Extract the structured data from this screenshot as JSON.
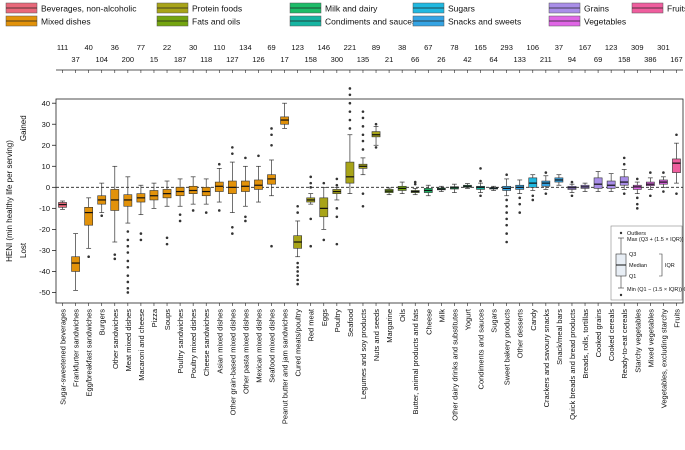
{
  "chart_data": {
    "type": "boxplot",
    "ylabel": "HENI (min healthy life per serving)",
    "y_direction_labels": {
      "up": "Gained",
      "down": "Lost"
    },
    "ylim": [
      -55,
      42
    ],
    "yticks": [
      40,
      30,
      20,
      10,
      0,
      -10,
      -20,
      -30,
      -40,
      -50
    ],
    "reference_line": 0,
    "legend": [
      {
        "name": "Beverages, non-alcoholic",
        "color": "#e8687a"
      },
      {
        "name": "Protein foods",
        "color": "#a8a418"
      },
      {
        "name": "Milk and dairy",
        "color": "#1dbc68"
      },
      {
        "name": "Sugars",
        "color": "#20b8e0"
      },
      {
        "name": "Grains",
        "color": "#a98ee8"
      },
      {
        "name": "Fruits",
        "color": "#ef5e9e"
      },
      {
        "name": "Mixed dishes",
        "color": "#e2920a"
      },
      {
        "name": "Fats and oils",
        "color": "#74a510"
      },
      {
        "name": "Condiments and sauces",
        "color": "#16b5a2"
      },
      {
        "name": "Snacks and sweets",
        "color": "#35a4e4"
      },
      {
        "name": "Vegetables",
        "color": "#e066e6"
      }
    ],
    "series": [
      {
        "name": "Sugar-sweetened beverages",
        "group": 0,
        "n": 111,
        "q1": -9.5,
        "med": -8.2,
        "q3": -7.2,
        "lo": -10.5,
        "hi": -6.5,
        "out": []
      },
      {
        "name": "Frankfurter sandwiches",
        "group": 6,
        "n": 37,
        "q1": -40,
        "med": -36,
        "q3": -33,
        "lo": -49,
        "hi": -22,
        "out": []
      },
      {
        "name": "Egg/breakfast sandwiches",
        "group": 6,
        "n": 40,
        "q1": -18,
        "med": -12,
        "q3": -9.5,
        "lo": -29,
        "hi": -5,
        "out": [
          -33
        ]
      },
      {
        "name": "Burgers",
        "group": 6,
        "n": 104,
        "q1": -8,
        "med": -6,
        "q3": -4,
        "lo": -12,
        "hi": 2,
        "out": [
          -13.5
        ]
      },
      {
        "name": "Other sandwiches",
        "group": 6,
        "n": 36,
        "q1": -11,
        "med": -6,
        "q3": -1,
        "lo": -26,
        "hi": 10,
        "out": [
          -32,
          -34
        ]
      },
      {
        "name": "Meat mixed dishes",
        "group": 6,
        "n": 200,
        "q1": -9,
        "med": -6,
        "q3": -3.5,
        "lo": -17,
        "hi": 5,
        "out": [
          -21,
          -25,
          -28,
          -31,
          -35,
          -38,
          -42,
          -45,
          -48,
          -50
        ]
      },
      {
        "name": "Macaroni and cheese",
        "group": 6,
        "n": 77,
        "q1": -7,
        "med": -5,
        "q3": -3,
        "lo": -13,
        "hi": 1,
        "out": [
          -22,
          -25
        ]
      },
      {
        "name": "Pizza",
        "group": 6,
        "n": 15,
        "q1": -6,
        "med": -4,
        "q3": -1.5,
        "lo": -10,
        "hi": 2,
        "out": []
      },
      {
        "name": "Soups",
        "group": 6,
        "n": 22,
        "q1": -5,
        "med": -3,
        "q3": -1,
        "lo": -9,
        "hi": 3,
        "out": [
          -24,
          -27
        ]
      },
      {
        "name": "Poultry sandwiches",
        "group": 6,
        "n": 187,
        "q1": -4,
        "med": -2,
        "q3": 0,
        "lo": -9,
        "hi": 4,
        "out": [
          -13,
          -16
        ]
      },
      {
        "name": "Poultry mixed dishes",
        "group": 6,
        "n": 30,
        "q1": -3,
        "med": -1.5,
        "q3": 0.5,
        "lo": -8,
        "hi": 5,
        "out": [
          -11
        ]
      },
      {
        "name": "Cheese sandwiches",
        "group": 6,
        "n": 118,
        "q1": -4,
        "med": -2,
        "q3": 0,
        "lo": -8,
        "hi": 4,
        "out": [
          -12
        ]
      },
      {
        "name": "Asian mixed dishes",
        "group": 6,
        "n": 110,
        "q1": -2,
        "med": 0.5,
        "q3": 2.5,
        "lo": -7,
        "hi": 9,
        "out": [
          11,
          -11
        ]
      },
      {
        "name": "Other grain-based mixed dishes",
        "group": 6,
        "n": 127,
        "q1": -3,
        "med": 0,
        "q3": 3,
        "lo": -12,
        "hi": 12,
        "out": [
          16,
          19,
          -19,
          -22
        ]
      },
      {
        "name": "Other pasta mixed dishes",
        "group": 6,
        "n": 134,
        "q1": -2,
        "med": 0.5,
        "q3": 3,
        "lo": -9,
        "hi": 10,
        "out": [
          14,
          -14,
          -16
        ]
      },
      {
        "name": "Mexican mixed dishes",
        "group": 6,
        "n": 126,
        "q1": -1,
        "med": 1,
        "q3": 3.5,
        "lo": -7,
        "hi": 10,
        "out": [
          15
        ]
      },
      {
        "name": "Seafood mixed dishes",
        "group": 6,
        "n": 69,
        "q1": 1.5,
        "med": 4,
        "q3": 6,
        "lo": -4,
        "hi": 13,
        "out": [
          20,
          25,
          28,
          -28
        ]
      },
      {
        "name": "Peanut butter and jam sandwiches",
        "group": 6,
        "n": 17,
        "q1": 30,
        "med": 32,
        "q3": 33.5,
        "lo": 28,
        "hi": 40,
        "out": []
      },
      {
        "name": "Cured meats/poultry",
        "group": 1,
        "n": 123,
        "q1": -29,
        "med": -26,
        "q3": -23,
        "lo": -33,
        "hi": -16,
        "out": [
          -36,
          -38,
          -40,
          -42,
          -44,
          -46,
          -12,
          -9
        ]
      },
      {
        "name": "Red meat",
        "group": 1,
        "n": 158,
        "q1": -7,
        "med": -6,
        "q3": -5,
        "lo": -8,
        "hi": -3,
        "out": [
          0,
          2,
          5,
          -15,
          -28
        ]
      },
      {
        "name": "Eggs",
        "group": 1,
        "n": 146,
        "q1": -14,
        "med": -10,
        "q3": -5,
        "lo": -20,
        "hi": 0,
        "out": [
          -25,
          2
        ]
      },
      {
        "name": "Poultry",
        "group": 1,
        "n": 300,
        "q1": -3,
        "med": -2,
        "q3": -1,
        "lo": -6,
        "hi": 0,
        "out": [
          1,
          4,
          -10,
          -14,
          -27
        ]
      },
      {
        "name": "Seafood",
        "group": 1,
        "n": 221,
        "q1": 2,
        "med": 5,
        "q3": 12,
        "lo": -3,
        "hi": 25,
        "out": [
          28,
          32,
          36,
          40,
          44,
          47
        ]
      },
      {
        "name": "Legumes and soy products",
        "group": 1,
        "n": 135,
        "q1": 9,
        "med": 10,
        "q3": 11,
        "lo": 6,
        "hi": 14,
        "out": [
          18,
          22,
          25,
          29,
          33,
          36,
          -3,
          -9
        ]
      },
      {
        "name": "Nuts and seeds",
        "group": 1,
        "n": 89,
        "q1": 24,
        "med": 25,
        "q3": 26.5,
        "lo": 20,
        "hi": 29,
        "out": [
          19,
          30
        ]
      },
      {
        "name": "Margarine",
        "group": 7,
        "n": 21,
        "q1": -2.5,
        "med": -1.8,
        "q3": -1,
        "lo": -3.5,
        "hi": -0.3,
        "out": []
      },
      {
        "name": "Oils",
        "group": 7,
        "n": 38,
        "q1": -1.5,
        "med": -0.5,
        "q3": 0.5,
        "lo": -3,
        "hi": 2.5,
        "out": []
      },
      {
        "name": "Butter, animal products and fats",
        "group": 7,
        "n": 66,
        "q1": -2.5,
        "med": -2,
        "q3": -1.5,
        "lo": -3.5,
        "hi": -0.5,
        "out": [
          1.5,
          2.5
        ]
      },
      {
        "name": "Cheese",
        "group": 2,
        "n": 67,
        "q1": -2.5,
        "med": -1.5,
        "q3": -0.5,
        "lo": -4,
        "hi": 1,
        "out": []
      },
      {
        "name": "Milk",
        "group": 2,
        "n": 26,
        "q1": -1.2,
        "med": -0.8,
        "q3": -0.3,
        "lo": -2,
        "hi": 0.5,
        "out": []
      },
      {
        "name": "Other dairy drinks and substitutes",
        "group": 2,
        "n": 78,
        "q1": -0.8,
        "med": -0.2,
        "q3": 0.3,
        "lo": -2.5,
        "hi": 1.5,
        "out": []
      },
      {
        "name": "Yogurt",
        "group": 2,
        "n": 42,
        "q1": 0,
        "med": 0.5,
        "q3": 1,
        "lo": -0.5,
        "hi": 1.8,
        "out": []
      },
      {
        "name": "Condiments and sauces",
        "group": 8,
        "n": 165,
        "q1": -1,
        "med": 0,
        "q3": 0.5,
        "lo": -2.5,
        "hi": 2,
        "out": [
          -4,
          3,
          9
        ]
      },
      {
        "name": "Sugars",
        "group": 3,
        "n": 64,
        "q1": -0.8,
        "med": -0.4,
        "q3": -0.1,
        "lo": -1.5,
        "hi": 0.5,
        "out": []
      },
      {
        "name": "Sweet bakery products",
        "group": 9,
        "n": 293,
        "q1": -1.5,
        "med": -0.5,
        "q3": 0.5,
        "lo": -4,
        "hi": 4,
        "out": [
          -6,
          -9,
          -12,
          -15,
          -18,
          -22,
          -26,
          6
        ]
      },
      {
        "name": "Other desserts",
        "group": 9,
        "n": 133,
        "q1": -1,
        "med": 0,
        "q3": 1,
        "lo": -3,
        "hi": 3.5,
        "out": [
          -5,
          -8,
          -12
        ]
      },
      {
        "name": "Candy",
        "group": 3,
        "n": 106,
        "q1": 0,
        "med": 2,
        "q3": 4.5,
        "lo": -1.5,
        "hi": 6,
        "out": [
          -4,
          -6
        ]
      },
      {
        "name": "Crackers and savoury snacks",
        "group": 9,
        "n": 211,
        "q1": 0.5,
        "med": 2,
        "q3": 3,
        "lo": -1,
        "hi": 5.5,
        "out": [
          -3,
          7
        ]
      },
      {
        "name": "Snack/meal bars",
        "group": 9,
        "n": 37,
        "q1": 2.5,
        "med": 3.5,
        "q3": 4.5,
        "lo": 1,
        "hi": 6,
        "out": []
      },
      {
        "name": "Quick breads and bread products",
        "group": 4,
        "n": 94,
        "q1": -1,
        "med": -0.2,
        "q3": 0.5,
        "lo": -2.5,
        "hi": 1.5,
        "out": [
          2.5,
          -4
        ]
      },
      {
        "name": "Breads, rolls, tortillas",
        "group": 4,
        "n": 167,
        "q1": -0.5,
        "med": 0.2,
        "q3": 1,
        "lo": -2,
        "hi": 2,
        "out": []
      },
      {
        "name": "Cooked grains",
        "group": 4,
        "n": 69,
        "q1": -0.5,
        "med": 1.5,
        "q3": 4.5,
        "lo": -2,
        "hi": 7.5,
        "out": []
      },
      {
        "name": "Cooked cereals",
        "group": 4,
        "n": 123,
        "q1": -0.5,
        "med": 1,
        "q3": 3,
        "lo": -2,
        "hi": 6.5,
        "out": []
      },
      {
        "name": "Ready-to-eat cereals",
        "group": 4,
        "n": 158,
        "q1": 1,
        "med": 2.5,
        "q3": 5,
        "lo": -1,
        "hi": 8.5,
        "out": [
          11,
          14,
          -3
        ]
      },
      {
        "name": "Starchy vegetables",
        "group": 10,
        "n": 309,
        "q1": -1,
        "med": 0.2,
        "q3": 1,
        "lo": -3,
        "hi": 2.5,
        "out": [
          -5,
          -8,
          -10,
          4
        ]
      },
      {
        "name": "Mixed vegetables",
        "group": 10,
        "n": 386,
        "q1": 0.8,
        "med": 1.5,
        "q3": 2.5,
        "lo": -1,
        "hi": 4.5,
        "out": [
          -4,
          7
        ]
      },
      {
        "name": "Vegetables, excluding starchy",
        "group": 10,
        "n": 301,
        "q1": 1.5,
        "med": 2.5,
        "q3": 3.5,
        "lo": 0,
        "hi": 5,
        "out": [
          -2,
          7
        ]
      },
      {
        "name": "Fruits",
        "group": 5,
        "n": 167,
        "q1": 7,
        "med": 11.5,
        "q3": 13.5,
        "lo": 2,
        "hi": 21,
        "out": [
          -3,
          25
        ]
      }
    ]
  },
  "box_key": {
    "outliers": "Outliers",
    "max": "Max (Q3 + (1.5 × IQR))",
    "q3": "Q3",
    "median": "Median",
    "q1": "Q1",
    "iqr": "IQR",
    "min": "Min (Q1 − (1.5 × IQR)) Outliers"
  }
}
